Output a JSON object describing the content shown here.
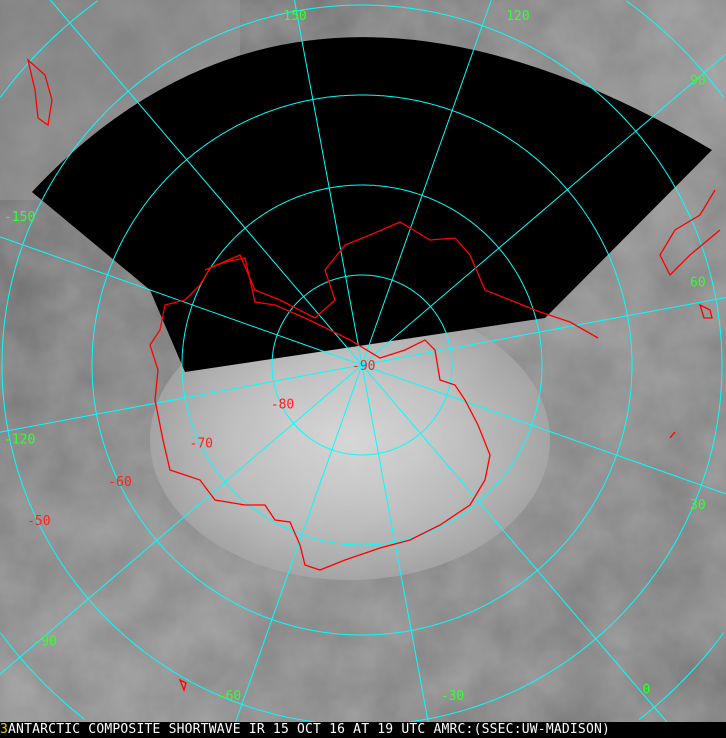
{
  "caption": {
    "marker": "3",
    "text": "ANTARCTIC COMPOSITE SHORTWAVE IR 15 OCT 16 AT 19 UTC AMRC:(SSEC:UW-MADISON)"
  },
  "colors": {
    "grid": "#00ffff",
    "coastline": "#ff0000",
    "longitude_label": "#33ff33",
    "latitude_label": "#ff2020"
  },
  "longitude_labels": [
    {
      "text": "150",
      "lon": 150
    },
    {
      "text": "120",
      "lon": 120
    },
    {
      "text": "90",
      "lon": 90
    },
    {
      "text": "60",
      "lon": 60
    },
    {
      "text": "30",
      "lon": 30
    },
    {
      "text": "0",
      "lon": 0
    },
    {
      "text": "-30",
      "lon": -30
    },
    {
      "text": "-60",
      "lon": -60
    },
    {
      "text": "-90",
      "lon": -90
    },
    {
      "text": "-120",
      "lon": -120
    },
    {
      "text": "-150",
      "lon": -150
    }
  ],
  "latitude_labels": [
    {
      "text": "-90",
      "lat": -90
    },
    {
      "text": "-80",
      "lat": -80
    },
    {
      "text": "-70",
      "lat": -70
    },
    {
      "text": "-60",
      "lat": -60
    },
    {
      "text": "-50",
      "lat": -50
    }
  ]
}
